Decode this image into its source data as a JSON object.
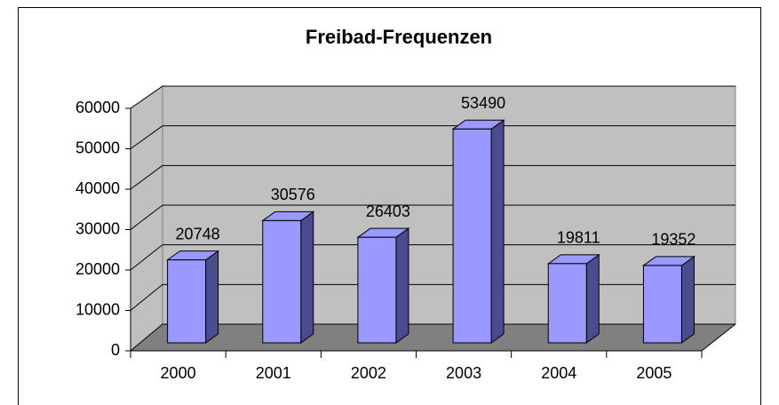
{
  "chart_data": {
    "type": "bar3d",
    "title": "Freibad-Frequenzen",
    "categories": [
      "2000",
      "2001",
      "2002",
      "2003",
      "2004",
      "2005"
    ],
    "values": [
      20748,
      30576,
      26403,
      53490,
      19811,
      19352
    ],
    "color": "#9999ff",
    "ylim": [
      0,
      60000
    ],
    "yticks": [
      0,
      10000,
      20000,
      30000,
      40000,
      50000,
      60000
    ],
    "grid": true
  }
}
